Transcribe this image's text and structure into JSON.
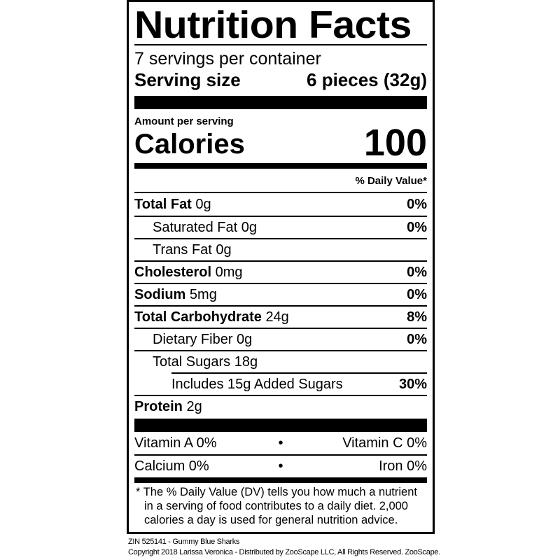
{
  "title": "Nutrition Facts",
  "servings_per_container": "7 servings per container",
  "serving_size": {
    "label": "Serving size",
    "value": "6 pieces (32g)"
  },
  "amount_per_serving": "Amount per serving",
  "calories": {
    "label": "Calories",
    "value": "100"
  },
  "daily_value_header": "% Daily Value*",
  "nutrients": [
    {
      "name": "Total Fat",
      "amount": "0g",
      "dv": "0%"
    },
    {
      "name": "Saturated Fat",
      "amount": "0g",
      "dv": "0%"
    },
    {
      "name": "Trans Fat",
      "amount": "0g",
      "dv": ""
    },
    {
      "name": "Cholesterol",
      "amount": "0mg",
      "dv": "0%"
    },
    {
      "name": "Sodium",
      "amount": "5mg",
      "dv": "0%"
    },
    {
      "name": "Total Carbohydrate",
      "amount": "24g",
      "dv": "8%"
    },
    {
      "name": "Dietary Fiber",
      "amount": "0g",
      "dv": "0%"
    },
    {
      "name": "Total Sugars",
      "amount": "18g",
      "dv": ""
    },
    {
      "name": "Includes 15g Added Sugars",
      "amount": "",
      "dv": "30%"
    },
    {
      "name": "Protein",
      "amount": "2g",
      "dv": ""
    }
  ],
  "vitamins": [
    {
      "left": "Vitamin A 0%",
      "sep": "•",
      "right": "Vitamin C 0%"
    },
    {
      "left": "Calcium 0%",
      "sep": "•",
      "right": "Iron 0%"
    }
  ],
  "footnote": "* The % Daily Value (DV) tells you how much a nutrient in a serving of food contributes to a daily diet. 2,000 calories a day is used for general nutrition advice.",
  "product_line": "ZIN 525141 - Gummy Blue Sharks",
  "copyright": "Copyright 2018 Larissa Veronica - Distributed by ZooScape LLC, All Rights Reserved. ZooScape."
}
